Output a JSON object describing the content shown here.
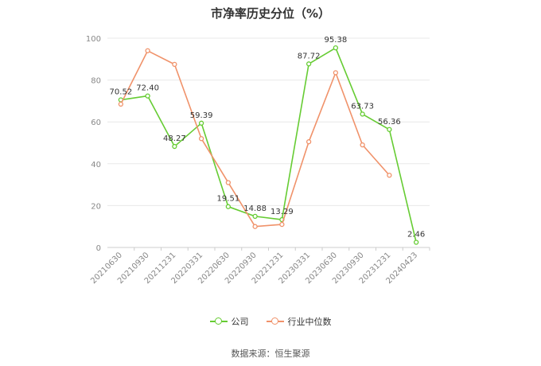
{
  "chart_data": {
    "type": "line",
    "title": "市净率历史分位（%）",
    "categories": [
      "20210630",
      "20210930",
      "20211231",
      "20220331",
      "20220630",
      "20220930",
      "20221231",
      "20230331",
      "20230630",
      "20230930",
      "20231231",
      "20240423"
    ],
    "ylim": [
      0,
      100
    ],
    "yticks": [
      0,
      20,
      40,
      60,
      80,
      100
    ],
    "grid": true,
    "legend_position": "bottom",
    "series": [
      {
        "name": "公司",
        "color": "#66cc33",
        "values": [
          70.52,
          72.4,
          48.27,
          59.39,
          19.51,
          14.88,
          13.29,
          87.72,
          95.38,
          63.73,
          56.36,
          2.46
        ],
        "labels": [
          "70.52",
          "72.40",
          "48.27",
          "59.39",
          "19.51",
          "14.88",
          "13.29",
          "87.72",
          "95.38",
          "63.73",
          "56.36",
          "2.46"
        ]
      },
      {
        "name": "行业中位数",
        "color": "#f0926a",
        "values": [
          68.5,
          94.0,
          87.5,
          52.0,
          31.0,
          10.0,
          11.0,
          50.5,
          83.5,
          49.0,
          34.5,
          null
        ]
      }
    ]
  },
  "footer": {
    "source": "数据来源：恒生聚源"
  }
}
